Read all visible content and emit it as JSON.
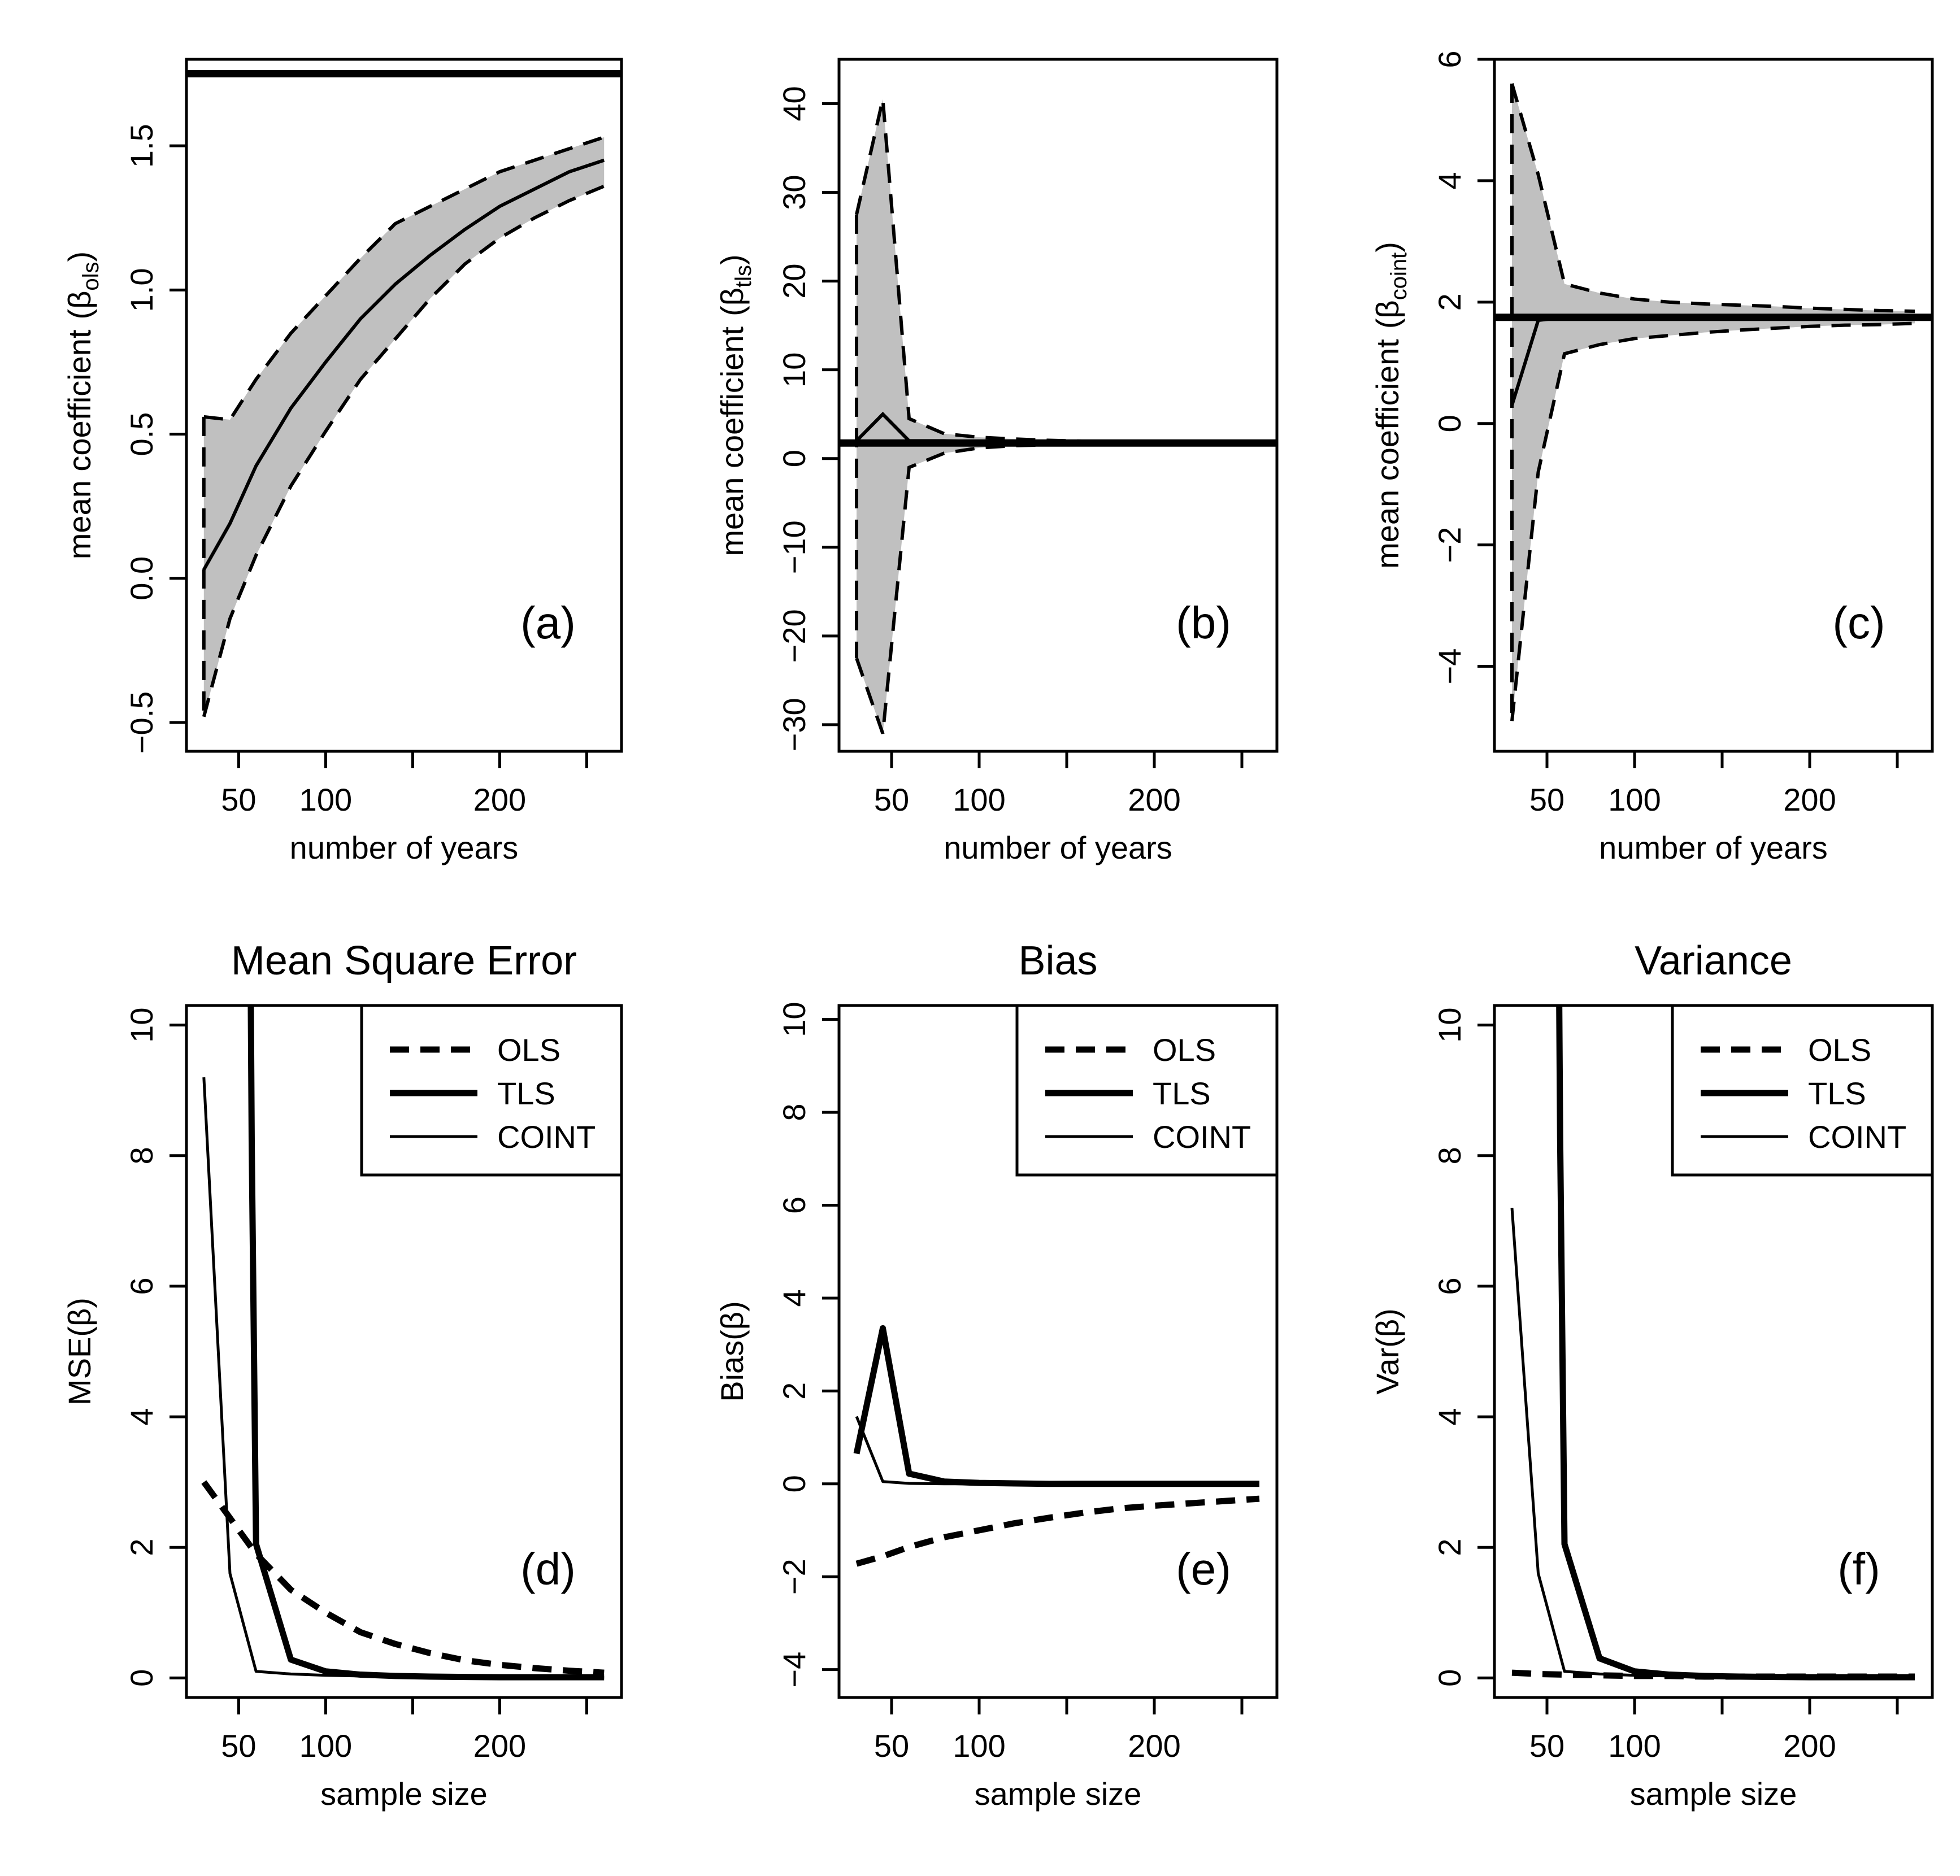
{
  "figure": {
    "background": "#ffffff",
    "band_color": "#c0c0c0",
    "line_color": "#000000"
  },
  "chart_data": [
    {
      "type": "area",
      "id": "a",
      "panel_label": "(a)",
      "title": "",
      "xlabel": "number of years",
      "ylabel_prefix": "mean coefficient",
      "ylabel_symbol": "β",
      "ylabel_subscript": "ols",
      "xticks": [
        50,
        100,
        150,
        200,
        250
      ],
      "xtick_labels": [
        "50",
        "100",
        "",
        "200",
        ""
      ],
      "yticks": [
        -0.5,
        0.0,
        0.5,
        1.0,
        1.5
      ],
      "ytick_labels": [
        "−0.5",
        "0.0",
        "0.5",
        "1.0",
        "1.5"
      ],
      "xlim": [
        20,
        270
      ],
      "ylim": [
        -0.6,
        1.8
      ],
      "true_value": 1.75,
      "x": [
        30,
        45,
        60,
        80,
        100,
        120,
        140,
        160,
        180,
        200,
        220,
        240,
        260
      ],
      "mean": [
        0.03,
        0.19,
        0.39,
        0.59,
        0.75,
        0.9,
        1.02,
        1.12,
        1.21,
        1.29,
        1.35,
        1.41,
        1.45
      ],
      "upper": [
        0.56,
        0.55,
        0.69,
        0.85,
        0.98,
        1.11,
        1.23,
        1.29,
        1.35,
        1.41,
        1.45,
        1.49,
        1.53
      ],
      "lower": [
        -0.48,
        -0.14,
        0.08,
        0.32,
        0.51,
        0.69,
        0.83,
        0.97,
        1.09,
        1.18,
        1.25,
        1.31,
        1.36
      ]
    },
    {
      "type": "area",
      "id": "b",
      "panel_label": "(b)",
      "title": "",
      "xlabel": "number of years",
      "ylabel_prefix": "mean coefficient",
      "ylabel_symbol": "β",
      "ylabel_subscript": "tls",
      "xticks": [
        50,
        100,
        150,
        200,
        250
      ],
      "xtick_labels": [
        "50",
        "100",
        "",
        "200",
        ""
      ],
      "yticks": [
        -30,
        -20,
        -10,
        0,
        10,
        20,
        30,
        40
      ],
      "ytick_labels": [
        "−30",
        "−20",
        "−10",
        "0",
        "10",
        "20",
        "30",
        "40"
      ],
      "xlim": [
        20,
        270
      ],
      "ylim": [
        -33,
        45
      ],
      "true_value": 1.75,
      "x": [
        30,
        45,
        60,
        80,
        100,
        120,
        140,
        160,
        180,
        200,
        220,
        240,
        260
      ],
      "mean": [
        2.0,
        5.0,
        2.0,
        2.0,
        1.9,
        1.8,
        1.8,
        1.75,
        1.75,
        1.75,
        1.75,
        1.75,
        1.75
      ],
      "upper": [
        27.5,
        40.5,
        4.5,
        2.8,
        2.4,
        2.2,
        2.05,
        1.95,
        1.9,
        1.85,
        1.82,
        1.8,
        1.8
      ],
      "lower": [
        -22.5,
        -31.0,
        -1.0,
        0.6,
        1.2,
        1.45,
        1.55,
        1.6,
        1.62,
        1.65,
        1.67,
        1.68,
        1.7
      ]
    },
    {
      "type": "area",
      "id": "c",
      "panel_label": "(c)",
      "title": "",
      "xlabel": "number of years",
      "ylabel_prefix": "mean coefficient",
      "ylabel_symbol": "β",
      "ylabel_subscript": "coint",
      "xticks": [
        50,
        100,
        150,
        200,
        250
      ],
      "xtick_labels": [
        "50",
        "100",
        "",
        "200",
        ""
      ],
      "yticks": [
        -4,
        -2,
        0,
        2,
        4,
        6
      ],
      "ytick_labels": [
        "−4",
        "−2",
        "0",
        "2",
        "4",
        "6"
      ],
      "xlim": [
        20,
        270
      ],
      "ylim": [
        -5.4,
        6.0
      ],
      "true_value": 1.75,
      "x": [
        30,
        45,
        60,
        80,
        100,
        120,
        140,
        160,
        180,
        200,
        220,
        240,
        260
      ],
      "mean": [
        0.3,
        1.7,
        1.75,
        1.75,
        1.75,
        1.75,
        1.75,
        1.75,
        1.75,
        1.75,
        1.75,
        1.75,
        1.75
      ],
      "upper": [
        5.6,
        4.1,
        2.3,
        2.15,
        2.05,
        2.0,
        1.97,
        1.95,
        1.93,
        1.9,
        1.88,
        1.86,
        1.85
      ],
      "lower": [
        -4.9,
        -0.8,
        1.15,
        1.3,
        1.4,
        1.45,
        1.5,
        1.54,
        1.57,
        1.6,
        1.62,
        1.63,
        1.65
      ]
    },
    {
      "type": "line",
      "id": "d",
      "panel_label": "(d)",
      "title": "Mean Square Error",
      "xlabel": "sample size",
      "ylabel_prefix": "MSE",
      "ylabel_symbol": "β",
      "xticks": [
        50,
        100,
        150,
        200,
        250
      ],
      "xtick_labels": [
        "50",
        "100",
        "",
        "200",
        ""
      ],
      "yticks": [
        0,
        2,
        4,
        6,
        8,
        10
      ],
      "ytick_labels": [
        "0",
        "2",
        "4",
        "6",
        "8",
        "10"
      ],
      "xlim": [
        20,
        270
      ],
      "ylim": [
        -0.3,
        10.3
      ],
      "legend": {
        "position": "top-right",
        "entries": [
          "OLS",
          "TLS",
          "COINT"
        ]
      },
      "series": [
        {
          "name": "OLS",
          "style": "dashed-thick",
          "x": [
            30,
            45,
            60,
            80,
            100,
            120,
            140,
            160,
            180,
            200,
            220,
            240,
            260
          ],
          "values": [
            3.0,
            2.45,
            1.9,
            1.35,
            1.0,
            0.7,
            0.52,
            0.38,
            0.27,
            0.2,
            0.15,
            0.11,
            0.08
          ]
        },
        {
          "name": "TLS",
          "style": "solid-thick",
          "x": [
            57,
            57.5,
            60,
            80,
            100,
            120,
            140,
            160,
            180,
            200,
            220,
            240,
            260
          ],
          "values": [
            10.3,
            8.2,
            2.05,
            0.28,
            0.1,
            0.05,
            0.03,
            0.02,
            0.015,
            0.01,
            0.01,
            0.01,
            0.01
          ]
        },
        {
          "name": "COINT",
          "style": "solid-thin",
          "x": [
            30,
            45,
            60,
            80,
            100,
            120,
            140,
            160,
            180,
            200,
            220,
            240,
            260
          ],
          "values": [
            9.2,
            1.6,
            0.1,
            0.06,
            0.04,
            0.03,
            0.02,
            0.015,
            0.01,
            0.01,
            0.01,
            0.01,
            0.01
          ]
        }
      ]
    },
    {
      "type": "line",
      "id": "e",
      "panel_label": "(e)",
      "title": "Bias",
      "xlabel": "sample size",
      "ylabel_prefix": "Bias",
      "ylabel_symbol": "β",
      "xticks": [
        50,
        100,
        150,
        200,
        250
      ],
      "xtick_labels": [
        "50",
        "100",
        "",
        "200",
        ""
      ],
      "yticks": [
        -4,
        -2,
        0,
        2,
        4,
        6,
        8,
        10
      ],
      "ytick_labels": [
        "−4",
        "−2",
        "0",
        "2",
        "4",
        "6",
        "8",
        "10"
      ],
      "xlim": [
        20,
        270
      ],
      "ylim": [
        -4.6,
        10.3
      ],
      "legend": {
        "position": "top-right",
        "entries": [
          "OLS",
          "TLS",
          "COINT"
        ]
      },
      "series": [
        {
          "name": "OLS",
          "style": "dashed-thick",
          "x": [
            30,
            45,
            60,
            80,
            100,
            120,
            140,
            160,
            180,
            200,
            220,
            240,
            260
          ],
          "values": [
            -1.72,
            -1.56,
            -1.36,
            -1.15,
            -1.0,
            -0.85,
            -0.73,
            -0.62,
            -0.53,
            -0.47,
            -0.42,
            -0.37,
            -0.32
          ]
        },
        {
          "name": "TLS",
          "style": "solid-thick",
          "x": [
            30,
            45,
            60,
            80,
            100,
            120,
            140,
            160,
            180,
            200,
            220,
            240,
            260
          ],
          "values": [
            0.65,
            3.35,
            0.22,
            0.05,
            0.02,
            0.01,
            0.0,
            0.0,
            0.0,
            0.0,
            0.0,
            0.0,
            0.0
          ]
        },
        {
          "name": "COINT",
          "style": "solid-thin",
          "x": [
            30,
            45,
            60,
            80,
            100,
            120,
            140,
            160,
            180,
            200,
            220,
            240,
            260
          ],
          "values": [
            1.45,
            0.05,
            0.01,
            0.0,
            0.0,
            0.0,
            0.0,
            0.0,
            0.0,
            0.0,
            0.0,
            0.0,
            0.0
          ]
        }
      ]
    },
    {
      "type": "line",
      "id": "f",
      "panel_label": "(f)",
      "title": "Variance",
      "xlabel": "sample size",
      "ylabel_prefix": "Var",
      "ylabel_symbol": "β",
      "xticks": [
        50,
        100,
        150,
        200,
        250
      ],
      "xtick_labels": [
        "50",
        "100",
        "",
        "200",
        ""
      ],
      "yticks": [
        0,
        2,
        4,
        6,
        8,
        10
      ],
      "ytick_labels": [
        "0",
        "2",
        "4",
        "6",
        "8",
        "10"
      ],
      "xlim": [
        20,
        270
      ],
      "ylim": [
        -0.3,
        10.3
      ],
      "legend": {
        "position": "top-right",
        "entries": [
          "OLS",
          "TLS",
          "COINT"
        ]
      },
      "series": [
        {
          "name": "OLS",
          "style": "dashed-thick",
          "x": [
            30,
            45,
            60,
            80,
            100,
            120,
            140,
            160,
            180,
            200,
            220,
            240,
            260
          ],
          "values": [
            0.08,
            0.06,
            0.05,
            0.04,
            0.03,
            0.03,
            0.02,
            0.02,
            0.02,
            0.02,
            0.02,
            0.02,
            0.02
          ]
        },
        {
          "name": "TLS",
          "style": "solid-thick",
          "x": [
            57,
            57.5,
            60,
            80,
            100,
            120,
            140,
            160,
            180,
            200,
            220,
            240,
            260
          ],
          "values": [
            10.3,
            8.3,
            2.05,
            0.3,
            0.1,
            0.05,
            0.03,
            0.02,
            0.015,
            0.01,
            0.01,
            0.01,
            0.01
          ]
        },
        {
          "name": "COINT",
          "style": "solid-thin",
          "x": [
            30,
            45,
            60,
            80,
            100,
            120,
            140,
            160,
            180,
            200,
            220,
            240,
            260
          ],
          "values": [
            7.2,
            1.6,
            0.1,
            0.06,
            0.04,
            0.03,
            0.02,
            0.015,
            0.01,
            0.01,
            0.01,
            0.01,
            0.01
          ]
        }
      ]
    }
  ]
}
